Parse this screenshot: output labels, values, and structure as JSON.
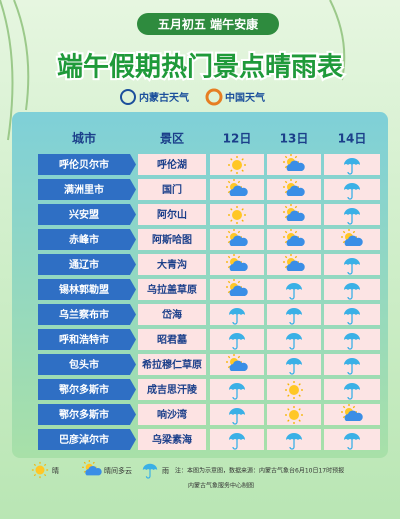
{
  "header": {
    "badge": "五月初五 端午安康",
    "title": "端午假期热门景点晴雨表",
    "logos": [
      "内蒙古天气",
      "中国天气"
    ]
  },
  "table": {
    "columns": [
      "城市",
      "景区",
      "12日",
      "13日",
      "14日"
    ],
    "rows": [
      [
        "呼伦贝尔市",
        "呼伦湖",
        "晴",
        "晴间多云",
        "雨"
      ],
      [
        "满洲里市",
        "国门",
        "晴间多云",
        "晴间多云",
        "雨"
      ],
      [
        "兴安盟",
        "阿尔山",
        "晴",
        "晴间多云",
        "雨"
      ],
      [
        "赤峰市",
        "阿斯哈图",
        "晴间多云",
        "晴间多云",
        "晴间多云"
      ],
      [
        "通辽市",
        "大青沟",
        "晴间多云",
        "晴间多云",
        "雨"
      ],
      [
        "锡林郭勒盟",
        "乌拉盖草原",
        "晴间多云",
        "雨",
        "雨"
      ],
      [
        "乌兰察布市",
        "岱海",
        "雨",
        "雨",
        "雨"
      ],
      [
        "呼和浩特市",
        "昭君墓",
        "雨",
        "雨",
        "雨"
      ],
      [
        "包头市",
        "希拉穆仁草原",
        "晴间多云",
        "雨",
        "雨"
      ],
      [
        "鄂尔多斯市",
        "成吉思汗陵",
        "雨",
        "晴",
        "雨"
      ],
      [
        "鄂尔多斯市",
        "响沙湾",
        "雨",
        "晴",
        "晴间多云"
      ],
      [
        "巴彦淖尔市",
        "乌梁素海",
        "雨",
        "雨",
        "雨"
      ]
    ]
  },
  "legend": [
    "晴",
    "晴间多云",
    "雨"
  ],
  "footer": {
    "note": "注：本图为示意图，数据来源：内蒙古气象台6月10日17时预报",
    "credit": "内蒙古气象服务中心制图"
  }
}
